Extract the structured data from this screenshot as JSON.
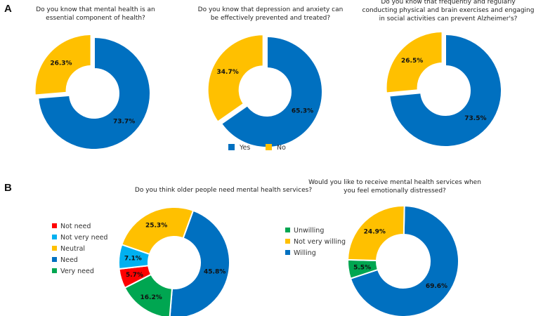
{
  "panels": [
    {
      "letter": "A"
    },
    {
      "letter": "B"
    }
  ],
  "shared_legend_A": [
    {
      "label": "Yes",
      "color": "#0070C0"
    },
    {
      "label": "No",
      "color": "#FFC000"
    }
  ],
  "chart_data": [
    {
      "type": "pie",
      "panel": "A",
      "title_lines": [
        "Do you know that mental health is an",
        "essential component of health?"
      ],
      "slices": [
        {
          "label": "Yes",
          "value": 73.7,
          "display": "73.7%",
          "color": "#0070C0"
        },
        {
          "label": "No",
          "value": 26.3,
          "display": "26.3%",
          "color": "#FFC000"
        }
      ]
    },
    {
      "type": "pie",
      "panel": "A",
      "title_lines": [
        "Do you know that depression and anxiety can",
        "be effectively prevented and treated?"
      ],
      "slices": [
        {
          "label": "Yes",
          "value": 65.3,
          "display": "65.3%",
          "color": "#0070C0"
        },
        {
          "label": "No",
          "value": 34.7,
          "display": "34.7%",
          "color": "#FFC000"
        }
      ]
    },
    {
      "type": "pie",
      "panel": "A",
      "title_lines": [
        "Do you know that frequently and regularly",
        "conducting physical and brain exercises and engaging",
        "in social activities can prevent Alzheimer's?"
      ],
      "slices": [
        {
          "label": "Yes",
          "value": 73.5,
          "display": "73.5%",
          "color": "#0070C0"
        },
        {
          "label": "No",
          "value": 26.5,
          "display": "26.5%",
          "color": "#FFC000"
        }
      ]
    },
    {
      "type": "pie",
      "panel": "B",
      "title_lines": [
        "Do you think older people need mental health services?"
      ],
      "legend": "left",
      "slices": [
        {
          "label": "Need",
          "value": 45.8,
          "display": "45.8%",
          "color": "#0070C0"
        },
        {
          "label": "Very need",
          "value": 16.2,
          "display": "16.2%",
          "color": "#00A651"
        },
        {
          "label": "Not need",
          "value": 5.7,
          "display": "5.7%",
          "color": "#FF0000"
        },
        {
          "label": "Not very need",
          "value": 7.1,
          "display": "7.1%",
          "color": "#00B0F0"
        },
        {
          "label": "Neutral",
          "value": 25.3,
          "display": "25.3%",
          "color": "#FFC000"
        }
      ],
      "legend_order": [
        "Not need",
        "Not very need",
        "Neutral",
        "Need",
        "Very need"
      ]
    },
    {
      "type": "pie",
      "panel": "B",
      "title_lines": [
        "Would you like to receive mental health services when",
        "you feel emotionally distressed?"
      ],
      "legend": "left",
      "slices": [
        {
          "label": "Willing",
          "value": 69.6,
          "display": "69.6%",
          "color": "#0070C0"
        },
        {
          "label": "Unwilling",
          "value": 5.5,
          "display": "5.5%",
          "color": "#00A651"
        },
        {
          "label": "Not very willing",
          "value": 24.9,
          "display": "24.9%",
          "color": "#FFC000"
        }
      ],
      "legend_order": [
        "Unwilling",
        "Not very willing",
        "Willing"
      ]
    }
  ]
}
